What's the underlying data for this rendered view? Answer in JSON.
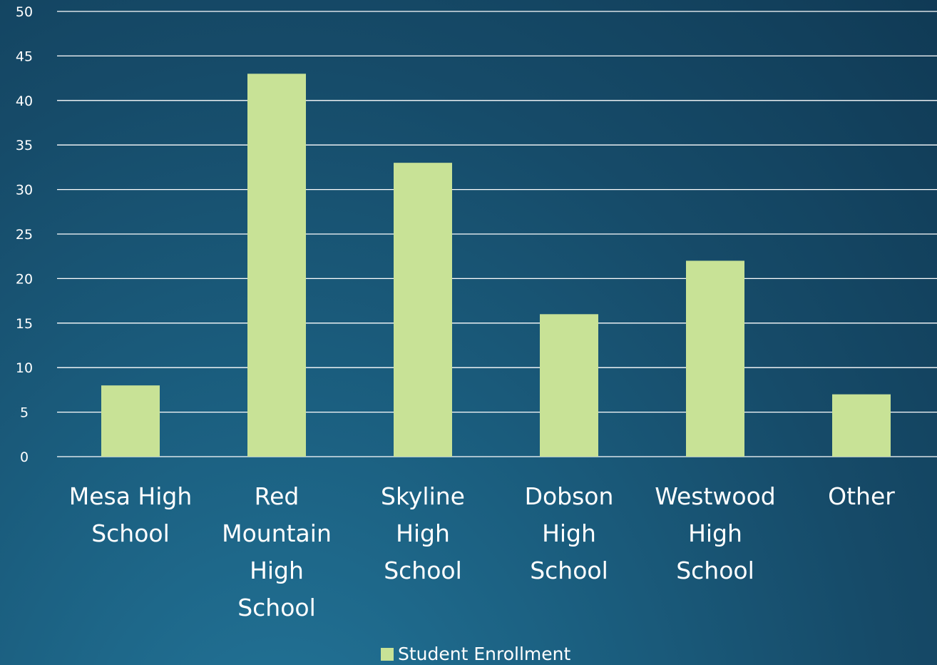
{
  "chart_data": {
    "type": "bar",
    "categories": [
      [
        "Mesa High",
        "School"
      ],
      [
        "Red",
        "Mountain",
        "High",
        "School"
      ],
      [
        "Skyline",
        "High",
        "School"
      ],
      [
        "Dobson",
        "High",
        "School"
      ],
      [
        "Westwood",
        "High",
        "School"
      ],
      [
        "Other"
      ]
    ],
    "series": [
      {
        "name": "Student Enrollment",
        "values": [
          8,
          43,
          33,
          16,
          22,
          7
        ]
      }
    ],
    "y_ticks": [
      "0",
      "5",
      "10",
      "15",
      "20",
      "25",
      "30",
      "35",
      "40",
      "45",
      "50"
    ],
    "ylim": [
      0,
      50
    ],
    "grid": true,
    "legend_position": "bottom",
    "colors": {
      "bar": "#c8e296",
      "grid": "#ffffff",
      "text": "#ffffff"
    }
  }
}
